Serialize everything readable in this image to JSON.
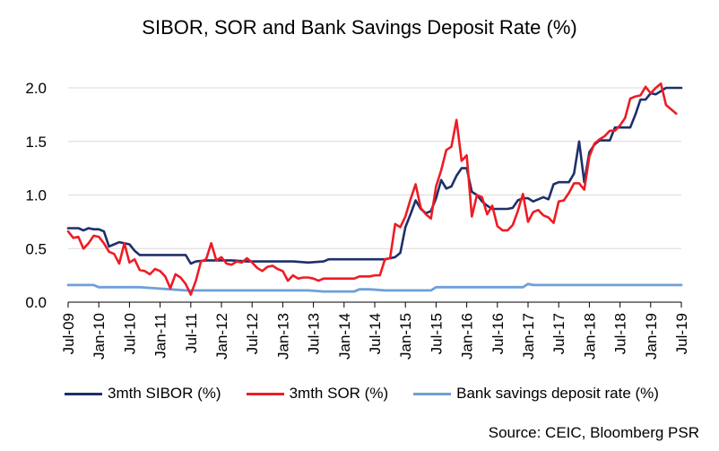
{
  "chart_data": {
    "type": "line",
    "title": "SIBOR, SOR and Bank Savings Deposit Rate (%)",
    "xlabel": "",
    "ylabel": "",
    "ylim": [
      0,
      2.0
    ],
    "yticks": [
      "0.0",
      "0.5",
      "1.0",
      "1.5",
      "2.0"
    ],
    "x_tick_labels": [
      "Jul-09",
      "Jan-10",
      "Jul-10",
      "Jan-11",
      "Jul-11",
      "Jan-12",
      "Jul-12",
      "Jan-13",
      "Jul-13",
      "Jan-14",
      "Jul-14",
      "Jan-15",
      "Jul-15",
      "Jan-16",
      "Jul-16",
      "Jan-17",
      "Jul-17",
      "Jan-18",
      "Jul-18",
      "Jan-19",
      "Jul-19"
    ],
    "grid": "horizontal",
    "legend_position": "bottom",
    "source": "Source: CEIC, Bloomberg PSR",
    "series": [
      {
        "name": "3mth SIBOR (%)",
        "color": "#1f2f6b",
        "points": [
          [
            "2009-07",
            0.69
          ],
          [
            "2009-09",
            0.69
          ],
          [
            "2009-10",
            0.67
          ],
          [
            "2009-11",
            0.69
          ],
          [
            "2009-12",
            0.68
          ],
          [
            "2010-01",
            0.68
          ],
          [
            "2010-02",
            0.66
          ],
          [
            "2010-03",
            0.52
          ],
          [
            "2010-04",
            0.54
          ],
          [
            "2010-05",
            0.56
          ],
          [
            "2010-06",
            0.55
          ],
          [
            "2010-07",
            0.54
          ],
          [
            "2010-08",
            0.48
          ],
          [
            "2010-09",
            0.44
          ],
          [
            "2010-10",
            0.44
          ],
          [
            "2010-12",
            0.44
          ],
          [
            "2011-03",
            0.44
          ],
          [
            "2011-06",
            0.44
          ],
          [
            "2011-07",
            0.36
          ],
          [
            "2011-08",
            0.38
          ],
          [
            "2011-10",
            0.39
          ],
          [
            "2011-12",
            0.39
          ],
          [
            "2012-03",
            0.39
          ],
          [
            "2012-06",
            0.38
          ],
          [
            "2012-09",
            0.38
          ],
          [
            "2012-12",
            0.38
          ],
          [
            "2013-03",
            0.38
          ],
          [
            "2013-06",
            0.37
          ],
          [
            "2013-09",
            0.38
          ],
          [
            "2013-10",
            0.4
          ],
          [
            "2013-12",
            0.4
          ],
          [
            "2014-03",
            0.4
          ],
          [
            "2014-06",
            0.4
          ],
          [
            "2014-09",
            0.4
          ],
          [
            "2014-11",
            0.42
          ],
          [
            "2014-12",
            0.46
          ],
          [
            "2015-01",
            0.7
          ],
          [
            "2015-02",
            0.82
          ],
          [
            "2015-03",
            0.95
          ],
          [
            "2015-04",
            0.87
          ],
          [
            "2015-05",
            0.83
          ],
          [
            "2015-06",
            0.85
          ],
          [
            "2015-07",
            0.97
          ],
          [
            "2015-08",
            1.14
          ],
          [
            "2015-09",
            1.06
          ],
          [
            "2015-10",
            1.08
          ],
          [
            "2015-11",
            1.18
          ],
          [
            "2015-12",
            1.25
          ],
          [
            "2016-01",
            1.25
          ],
          [
            "2016-02",
            1.03
          ],
          [
            "2016-03",
            1.0
          ],
          [
            "2016-04",
            0.94
          ],
          [
            "2016-05",
            0.9
          ],
          [
            "2016-06",
            0.87
          ],
          [
            "2016-09",
            0.87
          ],
          [
            "2016-10",
            0.88
          ],
          [
            "2016-11",
            0.95
          ],
          [
            "2016-12",
            0.97
          ],
          [
            "2017-01",
            0.97
          ],
          [
            "2017-02",
            0.94
          ],
          [
            "2017-03",
            0.96
          ],
          [
            "2017-04",
            0.98
          ],
          [
            "2017-05",
            0.96
          ],
          [
            "2017-06",
            1.1
          ],
          [
            "2017-07",
            1.12
          ],
          [
            "2017-09",
            1.12
          ],
          [
            "2017-10",
            1.2
          ],
          [
            "2017-11",
            1.5
          ],
          [
            "2017-12",
            1.12
          ],
          [
            "2018-01",
            1.4
          ],
          [
            "2018-02",
            1.47
          ],
          [
            "2018-03",
            1.51
          ],
          [
            "2018-05",
            1.51
          ],
          [
            "2018-06",
            1.63
          ],
          [
            "2018-09",
            1.63
          ],
          [
            "2018-10",
            1.75
          ],
          [
            "2018-11",
            1.89
          ],
          [
            "2018-12",
            1.89
          ],
          [
            "2019-01",
            1.95
          ],
          [
            "2019-02",
            1.94
          ],
          [
            "2019-03",
            1.97
          ],
          [
            "2019-04",
            2.0
          ],
          [
            "2019-06",
            2.0
          ],
          [
            "2019-07",
            2.0
          ]
        ]
      },
      {
        "name": "3mth SOR (%)",
        "color": "#ee1c24",
        "points": [
          [
            "2009-07",
            0.66
          ],
          [
            "2009-08",
            0.6
          ],
          [
            "2009-09",
            0.61
          ],
          [
            "2009-10",
            0.5
          ],
          [
            "2009-11",
            0.55
          ],
          [
            "2009-12",
            0.62
          ],
          [
            "2010-01",
            0.61
          ],
          [
            "2010-02",
            0.55
          ],
          [
            "2010-03",
            0.47
          ],
          [
            "2010-04",
            0.45
          ],
          [
            "2010-05",
            0.36
          ],
          [
            "2010-06",
            0.55
          ],
          [
            "2010-07",
            0.37
          ],
          [
            "2010-08",
            0.4
          ],
          [
            "2010-09",
            0.3
          ],
          [
            "2010-10",
            0.29
          ],
          [
            "2010-11",
            0.26
          ],
          [
            "2010-12",
            0.31
          ],
          [
            "2011-01",
            0.29
          ],
          [
            "2011-02",
            0.24
          ],
          [
            "2011-03",
            0.13
          ],
          [
            "2011-04",
            0.26
          ],
          [
            "2011-05",
            0.23
          ],
          [
            "2011-06",
            0.17
          ],
          [
            "2011-07",
            0.07
          ],
          [
            "2011-08",
            0.2
          ],
          [
            "2011-09",
            0.38
          ],
          [
            "2011-10",
            0.4
          ],
          [
            "2011-11",
            0.55
          ],
          [
            "2011-12",
            0.39
          ],
          [
            "2012-01",
            0.42
          ],
          [
            "2012-02",
            0.36
          ],
          [
            "2012-03",
            0.35
          ],
          [
            "2012-04",
            0.38
          ],
          [
            "2012-05",
            0.37
          ],
          [
            "2012-06",
            0.41
          ],
          [
            "2012-07",
            0.37
          ],
          [
            "2012-08",
            0.32
          ],
          [
            "2012-09",
            0.29
          ],
          [
            "2012-10",
            0.33
          ],
          [
            "2012-11",
            0.34
          ],
          [
            "2012-12",
            0.31
          ],
          [
            "2013-01",
            0.29
          ],
          [
            "2013-02",
            0.2
          ],
          [
            "2013-03",
            0.25
          ],
          [
            "2013-04",
            0.22
          ],
          [
            "2013-05",
            0.23
          ],
          [
            "2013-06",
            0.23
          ],
          [
            "2013-07",
            0.22
          ],
          [
            "2013-08",
            0.2
          ],
          [
            "2013-09",
            0.22
          ],
          [
            "2013-12",
            0.22
          ],
          [
            "2014-03",
            0.22
          ],
          [
            "2014-04",
            0.24
          ],
          [
            "2014-06",
            0.24
          ],
          [
            "2014-07",
            0.25
          ],
          [
            "2014-08",
            0.25
          ],
          [
            "2014-09",
            0.4
          ],
          [
            "2014-10",
            0.41
          ],
          [
            "2014-11",
            0.73
          ],
          [
            "2014-12",
            0.7
          ],
          [
            "2015-01",
            0.8
          ],
          [
            "2015-02",
            0.96
          ],
          [
            "2015-03",
            1.1
          ],
          [
            "2015-04",
            0.88
          ],
          [
            "2015-05",
            0.82
          ],
          [
            "2015-06",
            0.78
          ],
          [
            "2015-07",
            1.08
          ],
          [
            "2015-08",
            1.23
          ],
          [
            "2015-09",
            1.42
          ],
          [
            "2015-10",
            1.45
          ],
          [
            "2015-11",
            1.7
          ],
          [
            "2015-12",
            1.32
          ],
          [
            "2016-01",
            1.37
          ],
          [
            "2016-02",
            0.8
          ],
          [
            "2016-03",
            1.0
          ],
          [
            "2016-04",
            0.98
          ],
          [
            "2016-05",
            0.82
          ],
          [
            "2016-06",
            0.9
          ],
          [
            "2016-07",
            0.71
          ],
          [
            "2016-08",
            0.67
          ],
          [
            "2016-09",
            0.67
          ],
          [
            "2016-10",
            0.72
          ],
          [
            "2016-11",
            0.85
          ],
          [
            "2016-12",
            1.01
          ],
          [
            "2017-01",
            0.75
          ],
          [
            "2017-02",
            0.84
          ],
          [
            "2017-03",
            0.86
          ],
          [
            "2017-04",
            0.81
          ],
          [
            "2017-05",
            0.79
          ],
          [
            "2017-06",
            0.74
          ],
          [
            "2017-07",
            0.94
          ],
          [
            "2017-08",
            0.95
          ],
          [
            "2017-09",
            1.02
          ],
          [
            "2017-10",
            1.11
          ],
          [
            "2017-11",
            1.11
          ],
          [
            "2017-12",
            1.05
          ],
          [
            "2018-01",
            1.36
          ],
          [
            "2018-02",
            1.48
          ],
          [
            "2018-03",
            1.52
          ],
          [
            "2018-04",
            1.55
          ],
          [
            "2018-05",
            1.6
          ],
          [
            "2018-06",
            1.6
          ],
          [
            "2018-07",
            1.65
          ],
          [
            "2018-08",
            1.72
          ],
          [
            "2018-09",
            1.9
          ],
          [
            "2018-10",
            1.92
          ],
          [
            "2018-11",
            1.93
          ],
          [
            "2018-12",
            2.01
          ],
          [
            "2019-01",
            1.95
          ],
          [
            "2019-02",
            2.0
          ],
          [
            "2019-03",
            2.04
          ],
          [
            "2019-04",
            1.84
          ],
          [
            "2019-05",
            1.8
          ],
          [
            "2019-06",
            1.76
          ]
        ]
      },
      {
        "name": "Bank savings deposit rate (%)",
        "color": "#6fa0d8",
        "points": [
          [
            "2009-07",
            0.16
          ],
          [
            "2009-12",
            0.16
          ],
          [
            "2010-01",
            0.14
          ],
          [
            "2010-06",
            0.14
          ],
          [
            "2010-09",
            0.14
          ],
          [
            "2010-12",
            0.13
          ],
          [
            "2011-03",
            0.12
          ],
          [
            "2011-06",
            0.11
          ],
          [
            "2011-12",
            0.11
          ],
          [
            "2012-06",
            0.11
          ],
          [
            "2012-12",
            0.11
          ],
          [
            "2013-06",
            0.11
          ],
          [
            "2013-09",
            0.1
          ],
          [
            "2013-12",
            0.1
          ],
          [
            "2014-03",
            0.1
          ],
          [
            "2014-04",
            0.12
          ],
          [
            "2014-06",
            0.12
          ],
          [
            "2014-09",
            0.11
          ],
          [
            "2014-12",
            0.11
          ],
          [
            "2015-06",
            0.11
          ],
          [
            "2015-07",
            0.14
          ],
          [
            "2015-12",
            0.14
          ],
          [
            "2016-06",
            0.14
          ],
          [
            "2016-12",
            0.14
          ],
          [
            "2017-01",
            0.17
          ],
          [
            "2017-02",
            0.16
          ],
          [
            "2017-06",
            0.16
          ],
          [
            "2017-12",
            0.16
          ],
          [
            "2018-06",
            0.16
          ],
          [
            "2018-12",
            0.16
          ],
          [
            "2019-07",
            0.16
          ]
        ]
      }
    ]
  }
}
